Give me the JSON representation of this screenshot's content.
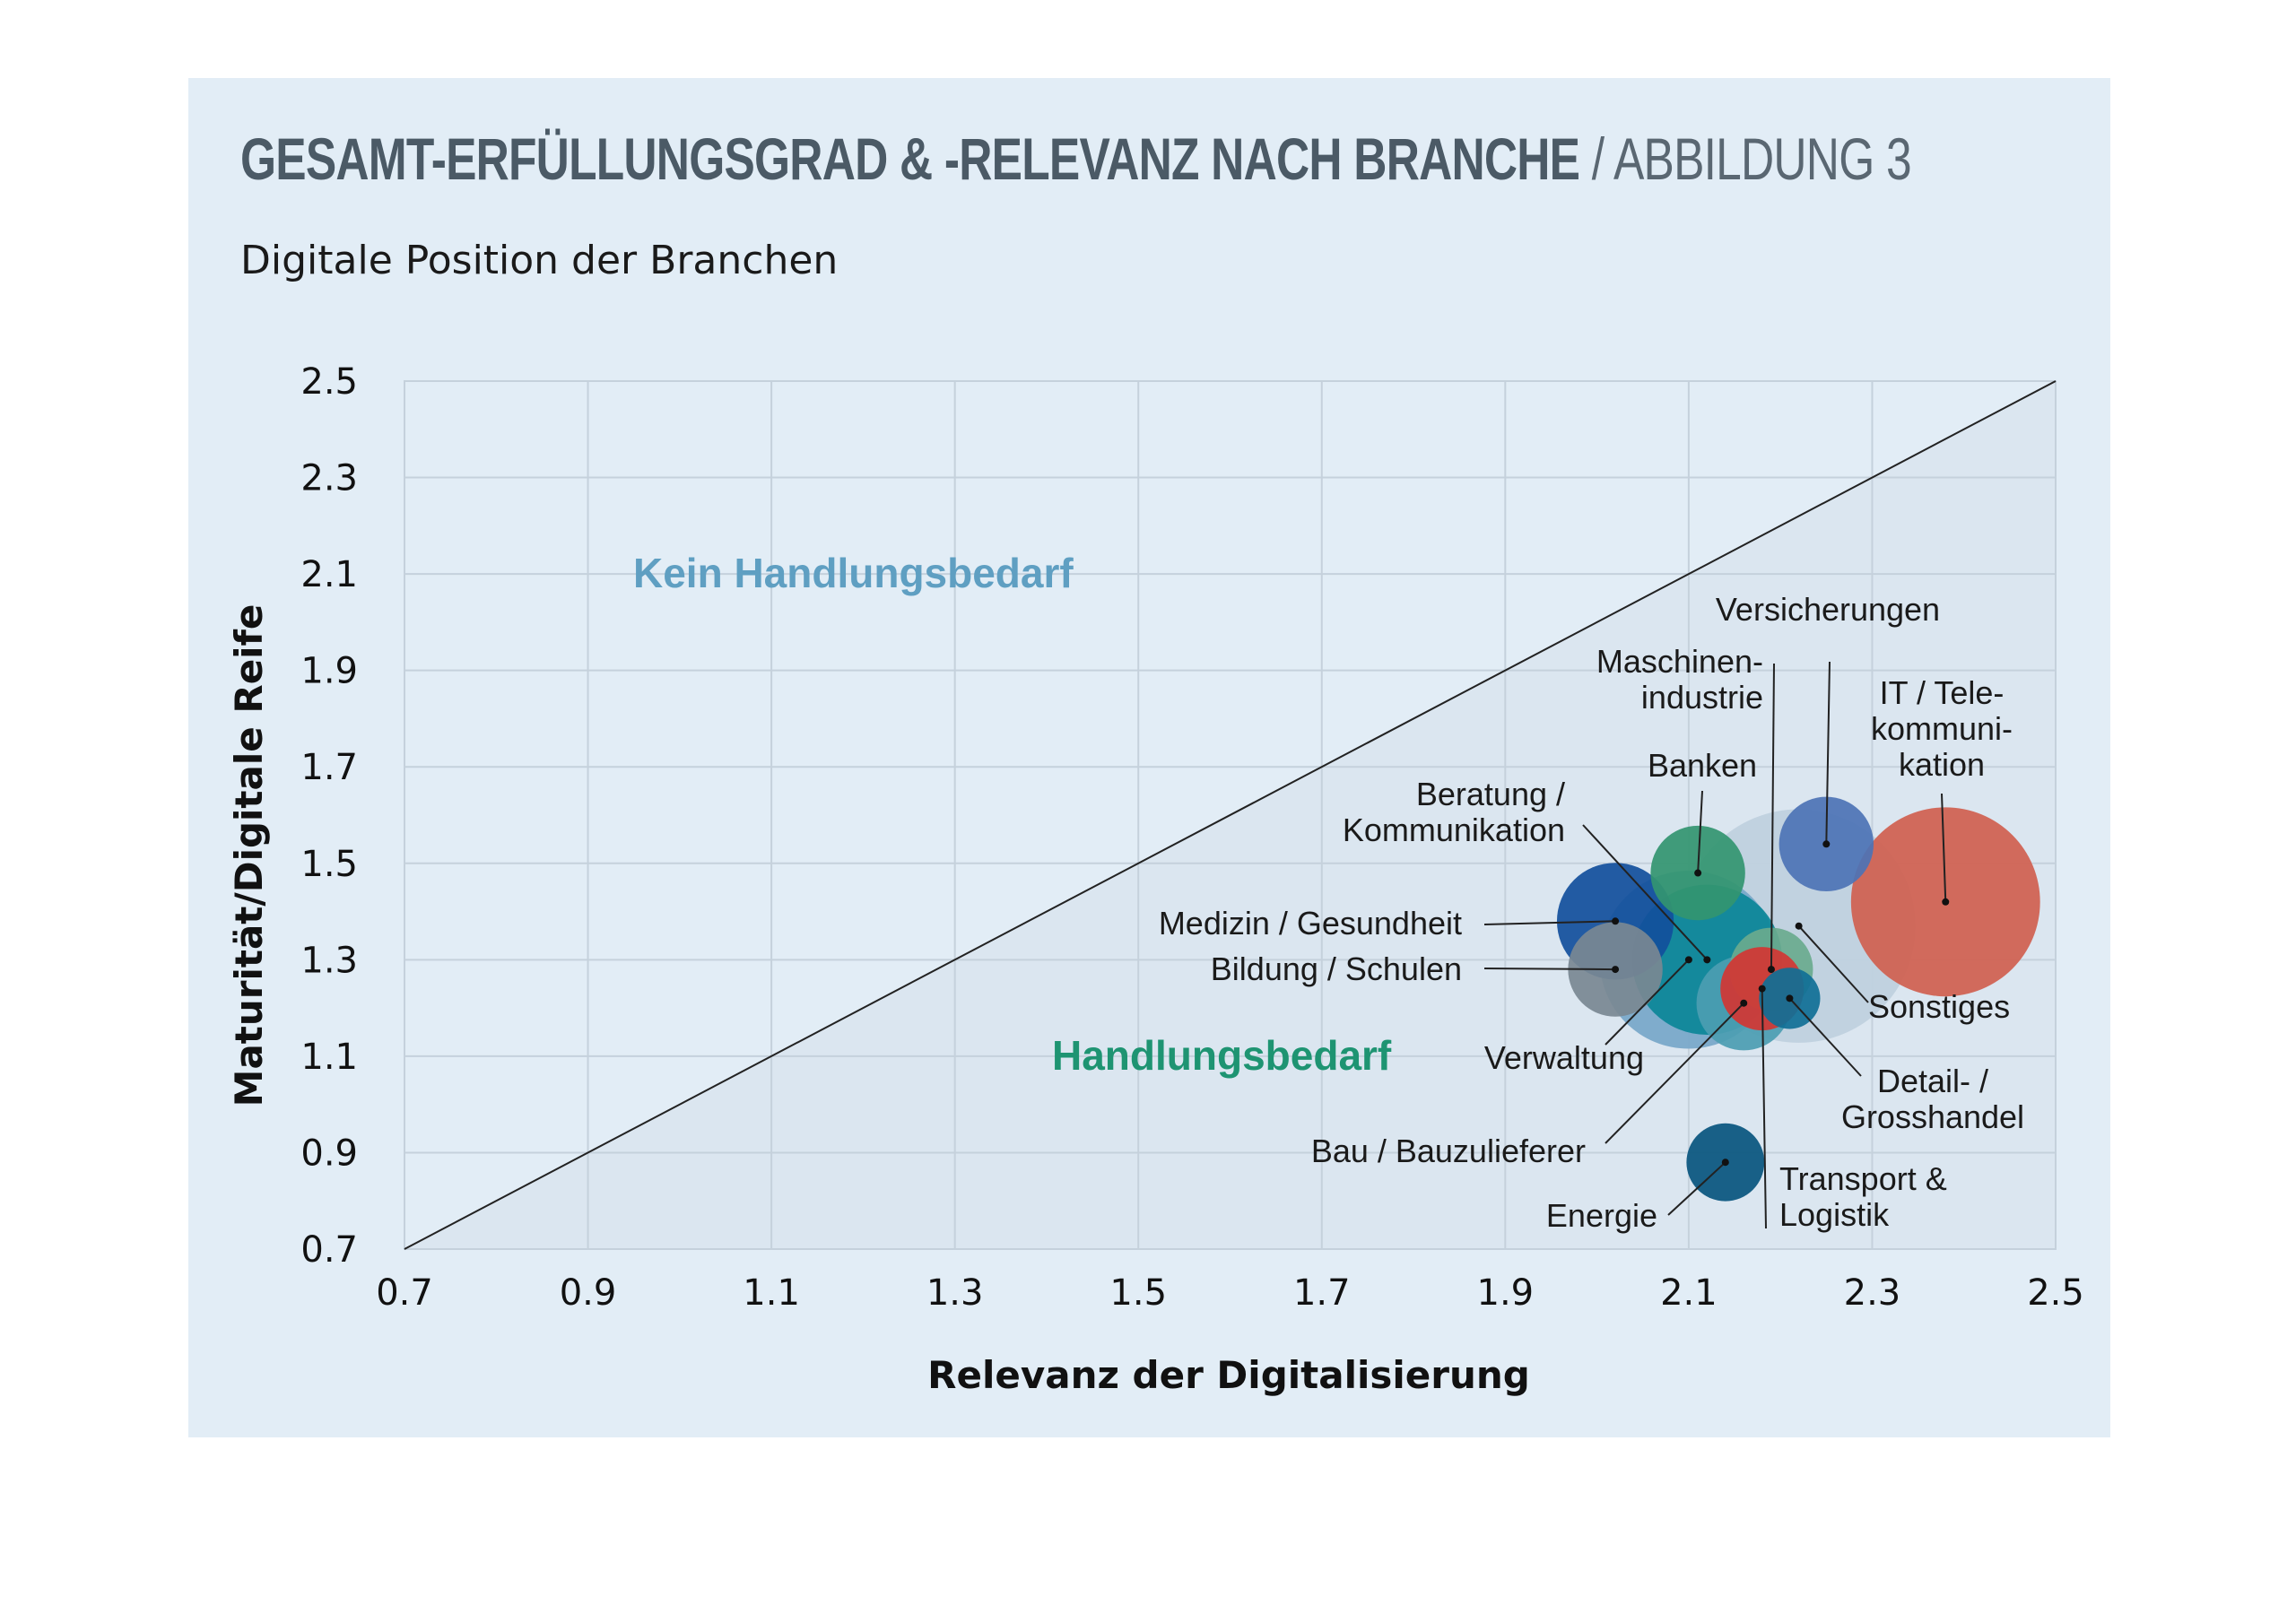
{
  "header": {
    "title_main": "GESAMT-ERFÜLLUNGSGRAD & -RELEVANZ NACH BRANCHE",
    "title_suffix": " / ABBILDUNG 3",
    "subtitle": "Digitale Position der Branchen"
  },
  "chart_data": {
    "type": "scatter",
    "subtype": "bubble",
    "title": "GESAMT-ERFÜLLUNGSGRAD & -RELEVANZ NACH BRANCHE / ABBILDUNG 3",
    "subtitle": "Digitale Position der Branchen",
    "xlabel": "Relevanz der Digitalisierung",
    "ylabel": "Maturität/Digitale Reife",
    "xlim": [
      0.7,
      2.5
    ],
    "ylim": [
      0.7,
      2.5
    ],
    "xticks": [
      "0.7",
      "0.9",
      "1.1",
      "1.3",
      "1.5",
      "1.7",
      "1.9",
      "2.1",
      "2.3",
      "2.5"
    ],
    "yticks": [
      "0.7",
      "0.9",
      "1.1",
      "1.3",
      "1.5",
      "1.7",
      "1.9",
      "2.1",
      "2.3",
      "2.5"
    ],
    "grid": true,
    "reference_line": {
      "from": [
        0.7,
        0.7
      ],
      "to": [
        2.5,
        2.5
      ]
    },
    "zones": [
      {
        "label": "Kein Handlungsbedarf",
        "color": "#5f9fc2",
        "x": 1.2,
        "y": 2.08
      },
      {
        "label": "Handlungsbedarf",
        "color": "#1e9472",
        "x": 1.6,
        "y": 1.08
      }
    ],
    "points": [
      {
        "name": "Sonstiges",
        "label_lines": [
          "Sonstiges"
        ],
        "x": 2.22,
        "y": 1.37,
        "size": 4.2,
        "color": "#bfd0de"
      },
      {
        "name": "IT / Telekommunikation",
        "label_lines": [
          "IT / Tele-",
          "kommuni-",
          "kation"
        ],
        "x": 2.38,
        "y": 1.42,
        "size": 3.4,
        "color": "#d0604f"
      },
      {
        "name": "Versicherungen",
        "label_lines": [
          "Versicherungen"
        ],
        "x": 2.25,
        "y": 1.54,
        "size": 1.7,
        "color": "#4d73b5"
      },
      {
        "name": "Banken",
        "label_lines": [
          "Banken"
        ],
        "x": 2.11,
        "y": 1.48,
        "size": 1.7,
        "color": "#339570"
      },
      {
        "name": "Medizin / Gesundheit",
        "label_lines": [
          "Medizin / Gesundheit"
        ],
        "x": 2.02,
        "y": 1.38,
        "size": 2.1,
        "color": "#124f9c"
      },
      {
        "name": "Bildung / Schulen",
        "label_lines": [
          "Bildung / Schulen"
        ],
        "x": 2.02,
        "y": 1.28,
        "size": 1.7,
        "color": "#7a8892"
      },
      {
        "name": "Verwaltung",
        "label_lines": [
          "Verwaltung"
        ],
        "x": 2.1,
        "y": 1.3,
        "size": 3.2,
        "color": "#77a7c9"
      },
      {
        "name": "Beratung / Kommunikation",
        "label_lines": [
          "Beratung /",
          "Kommunikation"
        ],
        "x": 2.12,
        "y": 1.3,
        "size": 2.7,
        "color": "#0b8598"
      },
      {
        "name": "Maschinenindustrie",
        "label_lines": [
          "Maschinen-",
          "industrie"
        ],
        "x": 2.19,
        "y": 1.28,
        "size": 1.5,
        "color": "#6aaa8e"
      },
      {
        "name": "Bau / Bauzulieferer",
        "label_lines": [
          "Bau / Bauzulieferer"
        ],
        "x": 2.16,
        "y": 1.21,
        "size": 1.7,
        "color": "#4c9db2"
      },
      {
        "name": "Transport & Logistik",
        "label_lines": [
          "Transport &",
          "Logistik"
        ],
        "x": 2.18,
        "y": 1.24,
        "size": 1.5,
        "color": "#d33633"
      },
      {
        "name": "Detail- / Grosshandel",
        "label_lines": [
          "Detail- /",
          "Grosshandel"
        ],
        "x": 2.21,
        "y": 1.22,
        "size": 1.1,
        "color": "#106f96"
      },
      {
        "name": "Energie",
        "label_lines": [
          "Energie"
        ],
        "x": 2.14,
        "y": 0.88,
        "size": 1.4,
        "color": "#08557e"
      }
    ]
  }
}
